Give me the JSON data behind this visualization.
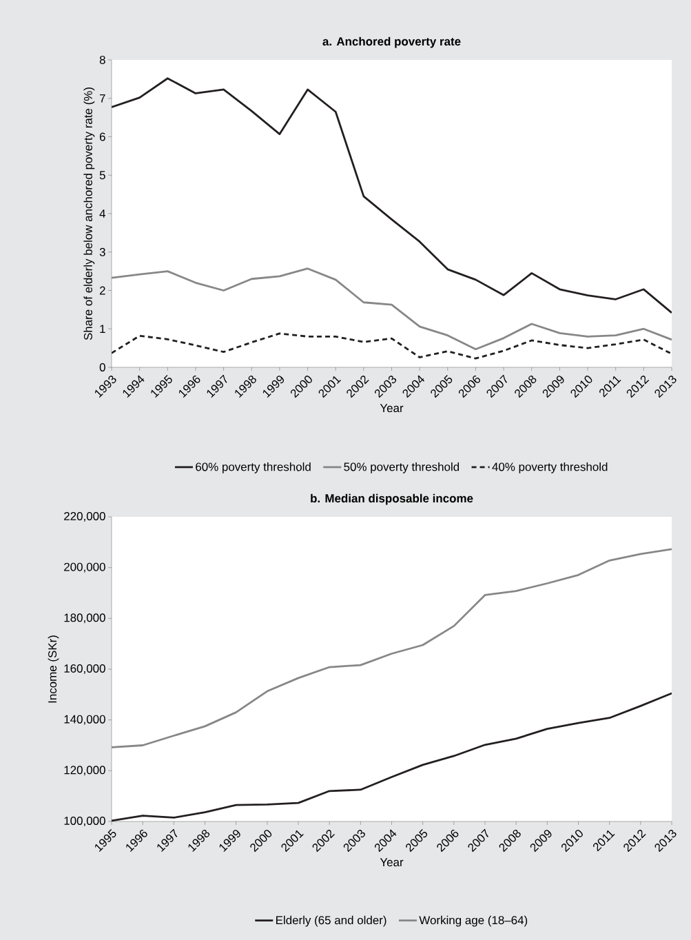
{
  "chart_data": [
    {
      "type": "line",
      "title": "a. Anchored poverty rate",
      "xlabel": "Year",
      "ylabel": "Share of elderly below anchored poverty rate (%)",
      "categories": [
        "1993",
        "1994",
        "1995",
        "1996",
        "1997",
        "1998",
        "1999",
        "2000",
        "2001",
        "2002",
        "2003",
        "2004",
        "2005",
        "2006",
        "2007",
        "2008",
        "2009",
        "2010",
        "2011",
        "2012",
        "2013"
      ],
      "ylim": [
        0,
        8
      ],
      "yticks": [
        0,
        1,
        2,
        3,
        4,
        5,
        6,
        7,
        8
      ],
      "legend": "bottom",
      "series": [
        {
          "name": "60% poverty threshold",
          "color": "#231f20",
          "line_style": "solid",
          "values": [
            6.77,
            7.02,
            7.52,
            7.13,
            7.23,
            6.67,
            6.07,
            7.23,
            6.65,
            4.45,
            3.85,
            3.27,
            2.55,
            2.28,
            1.88,
            2.45,
            2.03,
            1.87,
            1.77,
            2.03,
            1.42
          ]
        },
        {
          "name": "50% poverty threshold",
          "color": "#878787",
          "line_style": "solid",
          "values": [
            2.33,
            2.42,
            2.5,
            2.2,
            2.0,
            2.3,
            2.37,
            2.57,
            2.28,
            1.69,
            1.63,
            1.06,
            0.83,
            0.47,
            0.76,
            1.13,
            0.89,
            0.8,
            0.83,
            1.0,
            0.72
          ]
        },
        {
          "name": "40% poverty threshold",
          "color": "#231f20",
          "line_style": "dashed",
          "values": [
            0.37,
            0.82,
            0.73,
            0.57,
            0.4,
            0.65,
            0.88,
            0.8,
            0.8,
            0.66,
            0.75,
            0.26,
            0.42,
            0.23,
            0.43,
            0.7,
            0.58,
            0.5,
            0.6,
            0.72,
            0.35
          ]
        }
      ]
    },
    {
      "type": "line",
      "title": "b. Median disposable income",
      "xlabel": "Year",
      "ylabel": "Income (SKr)",
      "categories": [
        "1995",
        "1996",
        "1997",
        "1998",
        "1999",
        "2000",
        "2001",
        "2002",
        "2003",
        "2004",
        "2005",
        "2006",
        "2007",
        "2008",
        "2009",
        "2010",
        "2011",
        "2012",
        "2013"
      ],
      "ylim": [
        100000,
        220000
      ],
      "yticks": [
        {
          "value": 100000,
          "label": "100,000"
        },
        {
          "value": 120000,
          "label": "120,000"
        },
        {
          "value": 140000,
          "label": "140,000"
        },
        {
          "value": 160000,
          "label": "160,000"
        },
        {
          "value": 180000,
          "label": "180,000"
        },
        {
          "value": 200000,
          "label": "200,000"
        },
        {
          "value": 220000,
          "label": "220,000"
        }
      ],
      "legend": "bottom",
      "series": [
        {
          "name": "Elderly (65 and older)",
          "color": "#231f20",
          "line_style": "solid",
          "values": [
            100300,
            102300,
            101500,
            103600,
            106500,
            106700,
            107300,
            112000,
            112500,
            117500,
            122300,
            125800,
            130200,
            132600,
            136500,
            138800,
            140800,
            145500,
            150500
          ]
        },
        {
          "name": "Working age (18–64)",
          "color": "#878787",
          "line_style": "solid",
          "values": [
            129200,
            130000,
            133800,
            137500,
            143000,
            151300,
            156500,
            160800,
            161600,
            166100,
            169500,
            177000,
            189200,
            190800,
            193800,
            197100,
            202800,
            205400,
            207300
          ]
        }
      ]
    }
  ]
}
